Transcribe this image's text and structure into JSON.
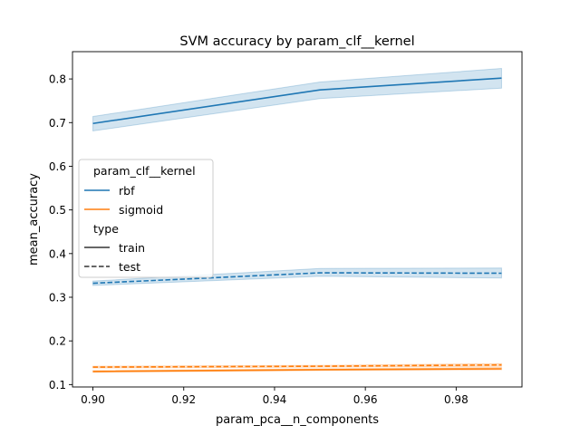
{
  "chart_data": {
    "type": "line",
    "title": "SVM accuracy by param_clf__kernel",
    "xlabel": "param_pca__n_components",
    "ylabel": "mean_accuracy",
    "xlim": [
      0.8955,
      0.9945
    ],
    "ylim": [
      0.0945,
      0.8625
    ],
    "xticks": [
      0.9,
      0.92,
      0.94,
      0.96,
      0.98
    ],
    "xtick_labels": [
      "0.90",
      "0.92",
      "0.94",
      "0.96",
      "0.98"
    ],
    "yticks": [
      0.1,
      0.2,
      0.3,
      0.4,
      0.5,
      0.6,
      0.7,
      0.8
    ],
    "ytick_labels": [
      "0.1",
      "0.2",
      "0.3",
      "0.4",
      "0.5",
      "0.6",
      "0.7",
      "0.8"
    ],
    "x": [
      0.9,
      0.95,
      0.99
    ],
    "series": [
      {
        "name": "rbf",
        "type_name": "train",
        "color": "#1f77b4",
        "dash": false,
        "values": [
          0.698,
          0.775,
          0.802
        ],
        "lower": [
          0.681,
          0.755,
          0.779
        ],
        "upper": [
          0.714,
          0.793,
          0.824
        ]
      },
      {
        "name": "rbf",
        "type_name": "test",
        "color": "#1f77b4",
        "dash": true,
        "values": [
          0.332,
          0.356,
          0.355
        ],
        "lower": [
          0.327,
          0.348,
          0.344
        ],
        "upper": [
          0.337,
          0.366,
          0.367
        ]
      },
      {
        "name": "sigmoid",
        "type_name": "train",
        "color": "#ff7f0e",
        "dash": false,
        "values": [
          0.13,
          0.134,
          0.136
        ],
        "lower": [
          0.128,
          0.132,
          0.134
        ],
        "upper": [
          0.132,
          0.136,
          0.139
        ]
      },
      {
        "name": "sigmoid",
        "type_name": "test",
        "color": "#ff7f0e",
        "dash": true,
        "values": [
          0.14,
          0.142,
          0.145
        ],
        "lower": [
          0.138,
          0.14,
          0.142
        ],
        "upper": [
          0.142,
          0.144,
          0.148
        ]
      }
    ],
    "legend": {
      "placement": "center-left",
      "hue_title": "param_clf__kernel",
      "hue_entries": [
        {
          "label": "rbf",
          "color": "#1f77b4"
        },
        {
          "label": "sigmoid",
          "color": "#ff7f0e"
        }
      ],
      "style_title": "type",
      "style_entries": [
        {
          "label": "train",
          "dash": false
        },
        {
          "label": "test",
          "dash": true
        }
      ]
    },
    "grid": false
  }
}
